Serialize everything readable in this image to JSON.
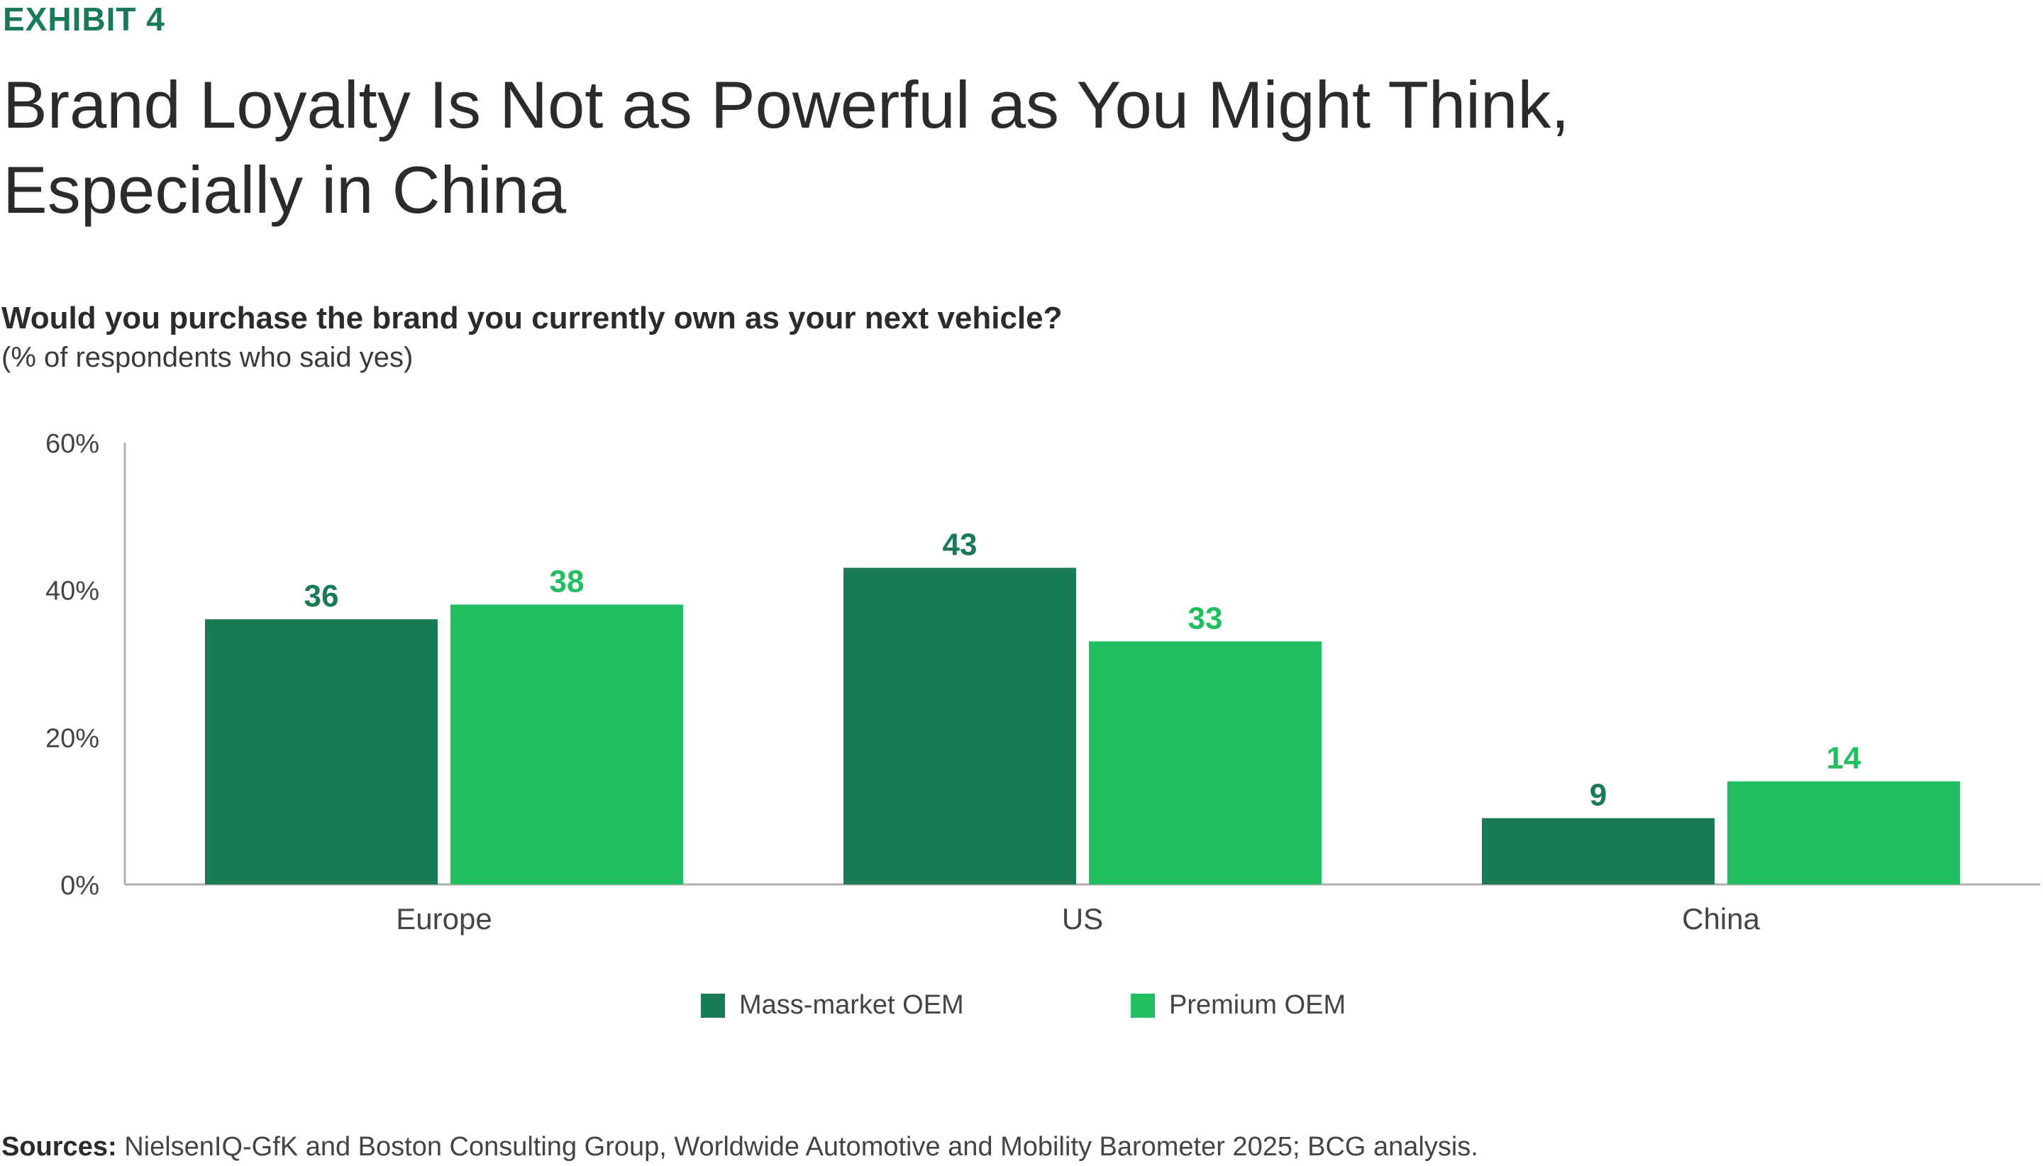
{
  "exhibit_label": "EXHIBIT 4",
  "title": "Brand Loyalty Is Not as Powerful as You Might Think, Especially in China",
  "subtitle": "Would you purchase the brand you currently own as your next vehicle?",
  "subnote": "(% of respondents who said yes)",
  "source_label": "Sources:",
  "source_text": "NielsenIQ-GfK and Boston Consulting Group, Worldwide Automotive and Mobility Barometer 2025; BCG analysis.",
  "colors": {
    "mass_market": "#197a56",
    "premium": "#21bf61",
    "axis": "#b0b0b0",
    "tick_text": "#444444",
    "exhibit": "#197a56"
  },
  "chart_data": {
    "type": "bar",
    "title": "Would you purchase the brand you currently own as your next vehicle?",
    "ylabel": "(% of respondents who said yes)",
    "xlabel": "",
    "categories": [
      "Europe",
      "US",
      "China"
    ],
    "series": [
      {
        "name": "Mass-market OEM",
        "values": [
          36,
          43,
          9
        ]
      },
      {
        "name": "Premium OEM",
        "values": [
          38,
          33,
          14
        ]
      }
    ],
    "ylim": [
      0,
      60
    ],
    "yticks": [
      0,
      20,
      40,
      60
    ],
    "ytick_labels": [
      "0%",
      "20%",
      "40%",
      "60%"
    ],
    "legend_position": "bottom-center",
    "grid": false
  }
}
